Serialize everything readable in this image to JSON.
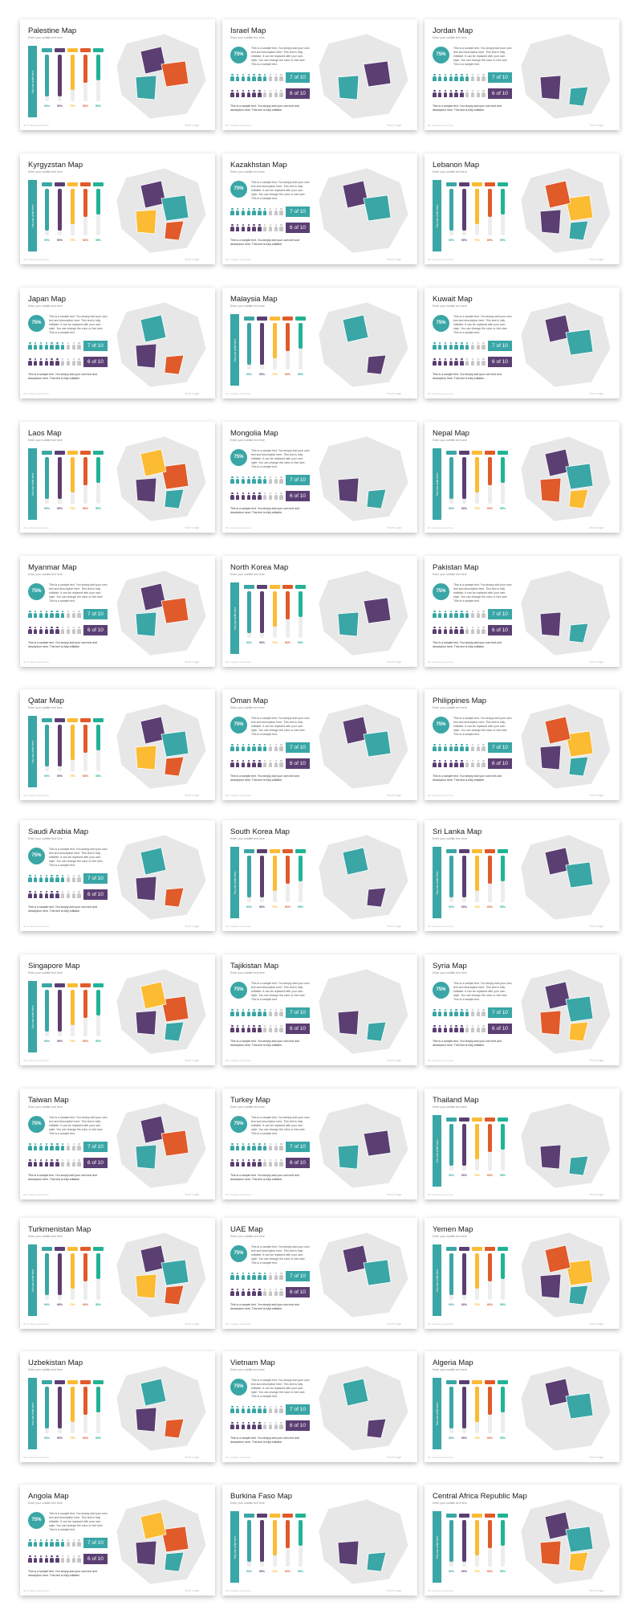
{
  "colors": {
    "teal": "#3aa6a6",
    "purple": "#5b3f73",
    "orange": "#e15a2a",
    "yellow": "#fbbb33",
    "green": "#21b395",
    "gray": "#e7e7e7",
    "person_gray": "#c7c7c7"
  },
  "common": {
    "subtitle": "Enter your subtitle text here",
    "vertical_label": "You can write here",
    "column_heads": [
      "Add Title",
      "Add Title",
      "Add Title",
      "Add Title",
      "Add Title"
    ],
    "column_pcts": [
      "90%",
      "90%",
      "75%",
      "60%",
      "55%"
    ],
    "badge": "75%",
    "paragraph": "This is a sample text. You simply add your own text and description here. This text is fully editable. It can be replaced with your own style. You can change the color or font size. This is a sample text.",
    "stat_a": "7 of 10",
    "stat_b": "6 of 10",
    "note": "This is a sample text. You simply add your own text and description here. This text is fully editable.",
    "footer_left": "ID: company name here",
    "footer_right": "Your Logo"
  },
  "slides": [
    {
      "title": "Palestine Map",
      "layout": "A"
    },
    {
      "title": "Israel Map",
      "layout": "B"
    },
    {
      "title": "Jordan Map",
      "layout": "B"
    },
    {
      "title": "Kyrgyzstan Map",
      "layout": "A"
    },
    {
      "title": "Kazakhstan Map",
      "layout": "B"
    },
    {
      "title": "Lebanon Map",
      "layout": "A"
    },
    {
      "title": "Japan Map",
      "layout": "B"
    },
    {
      "title": "Malaysia Map",
      "layout": "A"
    },
    {
      "title": "Kuwait Map",
      "layout": "B"
    },
    {
      "title": "Laos Map",
      "layout": "A"
    },
    {
      "title": "Mongolia Map",
      "layout": "B"
    },
    {
      "title": "Nepal Map",
      "layout": "A"
    },
    {
      "title": "Myanmar Map",
      "layout": "B"
    },
    {
      "title": "North Korea Map",
      "layout": "A"
    },
    {
      "title": "Pakistan Map",
      "layout": "B"
    },
    {
      "title": "Qatar Map",
      "layout": "A"
    },
    {
      "title": "Oman Map",
      "layout": "B"
    },
    {
      "title": "Philippines Map",
      "layout": "B"
    },
    {
      "title": "Saudi Arabia Map",
      "layout": "B"
    },
    {
      "title": "South Korea Map",
      "layout": "A"
    },
    {
      "title": "Sri Lanka Map",
      "layout": "A"
    },
    {
      "title": "Singapore Map",
      "layout": "A"
    },
    {
      "title": "Tajikistan Map",
      "layout": "B"
    },
    {
      "title": "Syria Map",
      "layout": "B"
    },
    {
      "title": "Taiwan Map",
      "layout": "B"
    },
    {
      "title": "Turkey Map",
      "layout": "B"
    },
    {
      "title": "Thailand Map",
      "layout": "A"
    },
    {
      "title": "Turkmenistan Map",
      "layout": "A"
    },
    {
      "title": "UAE Map",
      "layout": "B"
    },
    {
      "title": "Yemen Map",
      "layout": "A"
    },
    {
      "title": "Uzbekistan Map",
      "layout": "A"
    },
    {
      "title": "Vietnam Map",
      "layout": "B"
    },
    {
      "title": "Algeria Map",
      "layout": "A"
    },
    {
      "title": "Angola Map",
      "layout": "B"
    },
    {
      "title": "Burkina Faso Map",
      "layout": "A"
    },
    {
      "title": "Central Africa Republic Map",
      "layout": "A"
    }
  ]
}
